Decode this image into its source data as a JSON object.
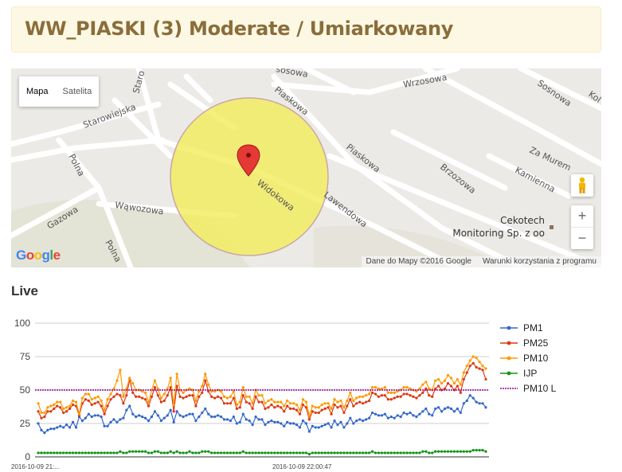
{
  "header": {
    "title": "WW_PIASKI (3) Moderate / Umiarkowany"
  },
  "map": {
    "type_buttons": [
      "Mapa",
      "Satelita"
    ],
    "zoom_in": "+",
    "zoom_out": "−",
    "logo": "Google",
    "attribution": "Dane do Mapy ©2016 Google",
    "terms": "Warunki korzystania z programu",
    "circle_color": "#f2ec5a",
    "marker_color": "#e53935",
    "place_label_1": "Cekotech",
    "place_label_2": "Monitoring Sp. z oo",
    "streets": [
      "Wrzosowa",
      "Sosnowa",
      "Kol",
      "Piaskowa",
      "Piaskowa",
      "Brzozowa",
      "Za Murem",
      "Kamienna",
      "Starowiejska",
      "Staro",
      "Widokowa",
      "Lawendowa",
      "Wąwozowa",
      "Gazowa",
      "Polna",
      "Polna",
      "sosowa"
    ]
  },
  "live": {
    "heading": "Live"
  },
  "chart_data": {
    "type": "line",
    "ylim": [
      0,
      100
    ],
    "yticks": [
      "0",
      "25",
      "50",
      "75",
      "100"
    ],
    "x_labels_shown": [
      "2016-10-09 21:...",
      "2016-10-09 22:00:47"
    ],
    "legend_position": "right",
    "series": [
      {
        "name": "PM1",
        "color": "#3366cc",
        "values": [
          25,
          20,
          18,
          20,
          21,
          21,
          22,
          23,
          22,
          24,
          22,
          26,
          22,
          30,
          27,
          29,
          32,
          30,
          31,
          31,
          30,
          23,
          23,
          26,
          28,
          26,
          28,
          29,
          35,
          38,
          32,
          30,
          31,
          30,
          29,
          27,
          30,
          34,
          31,
          27,
          29,
          31,
          35,
          26,
          34,
          31,
          30,
          31,
          32,
          32,
          27,
          30,
          33,
          36,
          32,
          30,
          30,
          31,
          30,
          28,
          28,
          27,
          30,
          25,
          26,
          32,
          28,
          27,
          24,
          30,
          28,
          28,
          24,
          26,
          27,
          26,
          26,
          25,
          23,
          26,
          25,
          25,
          24,
          22,
          27,
          25,
          19,
          23,
          22,
          22,
          23,
          24,
          25,
          22,
          27,
          24,
          26,
          22,
          25,
          29,
          25,
          27,
          28,
          27,
          28,
          29,
          33,
          32,
          31,
          31,
          32,
          29,
          30,
          29,
          31,
          30,
          33,
          32,
          33,
          31,
          30,
          32,
          34,
          36,
          32,
          31,
          36,
          37,
          34,
          36,
          37,
          36,
          34,
          36,
          33,
          40,
          42,
          46,
          44,
          41,
          40,
          40,
          37
        ]
      },
      {
        "name": "PM25",
        "color": "#dc3912",
        "values": [
          34,
          29,
          30,
          34,
          34,
          36,
          38,
          37,
          33,
          34,
          36,
          39,
          38,
          31,
          40,
          43,
          42,
          39,
          40,
          41,
          38,
          32,
          38,
          43,
          45,
          47,
          46,
          40,
          46,
          58,
          48,
          45,
          45,
          44,
          43,
          38,
          45,
          52,
          46,
          41,
          42,
          46,
          52,
          34,
          53,
          45,
          44,
          45,
          46,
          46,
          38,
          45,
          48,
          57,
          49,
          45,
          44,
          45,
          44,
          40,
          40,
          40,
          44,
          36,
          37,
          46,
          41,
          40,
          36,
          45,
          41,
          41,
          36,
          37,
          39,
          37,
          38,
          37,
          34,
          38,
          36,
          36,
          35,
          32,
          39,
          37,
          28,
          34,
          33,
          33,
          35,
          36,
          37,
          32,
          39,
          37,
          38,
          33,
          38,
          43,
          38,
          40,
          41,
          40,
          41,
          42,
          48,
          47,
          45,
          46,
          46,
          43,
          43,
          44,
          45,
          45,
          47,
          47,
          46,
          45,
          44,
          46,
          48,
          51,
          46,
          45,
          51,
          53,
          50,
          51,
          55,
          53,
          50,
          53,
          48,
          58,
          63,
          68,
          70,
          67,
          66,
          65,
          58
        ]
      },
      {
        "name": "PM10",
        "color": "#ff9900",
        "values": [
          40,
          33,
          33,
          37,
          38,
          39,
          41,
          41,
          36,
          37,
          38,
          42,
          41,
          32,
          44,
          47,
          47,
          43,
          44,
          45,
          42,
          35,
          43,
          47,
          51,
          57,
          65,
          45,
          51,
          59,
          55,
          50,
          50,
          49,
          48,
          41,
          50,
          57,
          51,
          44,
          47,
          51,
          59,
          39,
          62,
          50,
          48,
          50,
          51,
          50,
          42,
          49,
          53,
          62,
          54,
          49,
          49,
          50,
          49,
          45,
          44,
          45,
          49,
          39,
          41,
          52,
          45,
          45,
          40,
          50,
          46,
          46,
          40,
          42,
          43,
          41,
          41,
          41,
          38,
          42,
          40,
          40,
          39,
          35,
          43,
          41,
          31,
          38,
          37,
          37,
          39,
          40,
          40,
          36,
          43,
          41,
          42,
          37,
          42,
          48,
          42,
          44,
          45,
          45,
          46,
          47,
          52,
          52,
          51,
          51,
          52,
          48,
          48,
          48,
          49,
          50,
          52,
          52,
          51,
          50,
          49,
          51,
          54,
          56,
          51,
          50,
          57,
          58,
          55,
          57,
          61,
          59,
          55,
          58,
          54,
          63,
          68,
          72,
          75,
          74,
          71,
          68,
          66
        ]
      },
      {
        "name": "IJP",
        "color": "#109618",
        "values": [
          3,
          3,
          3,
          3,
          3,
          3,
          3,
          3,
          3,
          3,
          3,
          3,
          3,
          3,
          3,
          3,
          3,
          3,
          3,
          3,
          3,
          3,
          3,
          3,
          3,
          3,
          4,
          3,
          3,
          4,
          4,
          4,
          4,
          4,
          4,
          3,
          3,
          4,
          4,
          3,
          3,
          3,
          4,
          3,
          4,
          3,
          3,
          3,
          4,
          3,
          3,
          3,
          4,
          4,
          4,
          3,
          3,
          3,
          3,
          3,
          3,
          3,
          3,
          3,
          3,
          4,
          3,
          3,
          3,
          3,
          3,
          3,
          3,
          3,
          3,
          3,
          3,
          3,
          3,
          3,
          3,
          3,
          3,
          3,
          3,
          3,
          2,
          3,
          3,
          3,
          3,
          3,
          3,
          3,
          3,
          3,
          3,
          3,
          3,
          3,
          3,
          3,
          3,
          3,
          3,
          3,
          4,
          3,
          3,
          3,
          3,
          3,
          3,
          3,
          3,
          3,
          3,
          3,
          3,
          3,
          3,
          3,
          4,
          4,
          3,
          3,
          4,
          4,
          4,
          4,
          4,
          4,
          4,
          4,
          4,
          4,
          4,
          4,
          5,
          5,
          5,
          5,
          4
        ]
      },
      {
        "name": "PM10 L",
        "color": "#990099",
        "dashed": true,
        "values": [
          50
        ]
      }
    ]
  }
}
